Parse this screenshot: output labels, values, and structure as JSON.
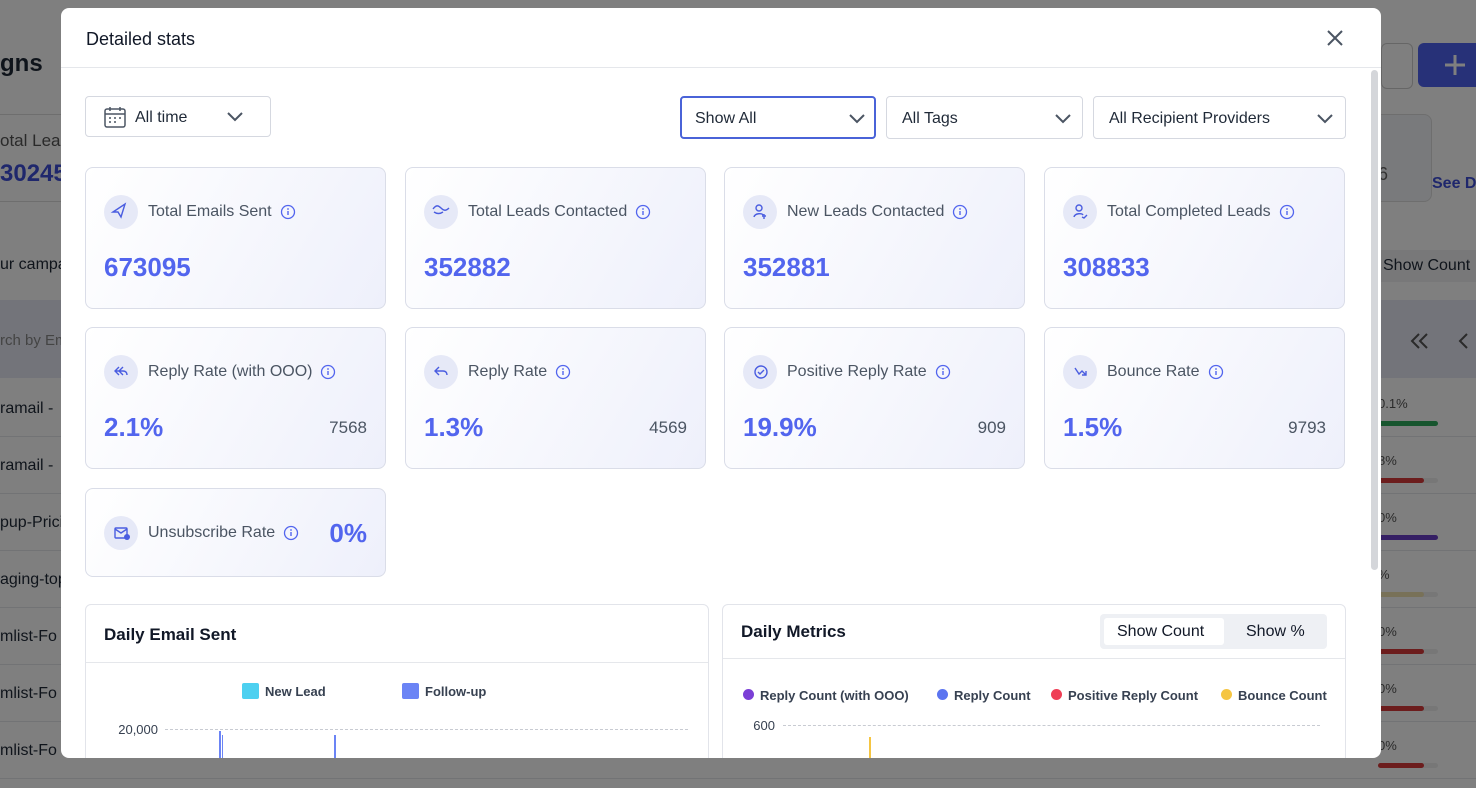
{
  "background": {
    "title": "gns",
    "total_leads_label": "otal Lead",
    "total_leads_value": "30245",
    "side_number": "6",
    "see_link": "See D",
    "campaigns_label": "ur campa",
    "show_count": "Show Count",
    "search_placeholder": "rch by Em",
    "rows": [
      {
        "name": "ramail -",
        "rate": "0.1%"
      },
      {
        "name": "ramail -",
        "rate": "8%"
      },
      {
        "name": "pup-Prici",
        "rate": "0%"
      },
      {
        "name": "aging-top",
        "rate": "%"
      },
      {
        "name": "mlist-Fo",
        "rate": "0%"
      },
      {
        "name": "mlist-Fo",
        "rate": "0%"
      },
      {
        "name": "mlist-Fo",
        "rate": "0%"
      }
    ]
  },
  "modal": {
    "title": "Detailed stats",
    "filters": {
      "date": "All time",
      "view": "Show All",
      "tags": "All Tags",
      "providers": "All Recipient Providers"
    },
    "cards": [
      {
        "label": "Total Emails Sent",
        "value": "673095"
      },
      {
        "label": "Total Leads Contacted",
        "value": "352882"
      },
      {
        "label": "New Leads Contacted",
        "value": "352881"
      },
      {
        "label": "Total Completed Leads",
        "value": "308833"
      },
      {
        "label": "Reply Rate (with OOO)",
        "value": "2.1%",
        "count": "7568"
      },
      {
        "label": "Reply Rate",
        "value": "1.3%",
        "count": "4569"
      },
      {
        "label": "Positive Reply Rate",
        "value": "19.9%",
        "count": "909"
      },
      {
        "label": "Bounce Rate",
        "value": "1.5%",
        "count": "9793"
      },
      {
        "label": "Unsubscribe Rate",
        "value": "0%"
      }
    ],
    "daily_email_sent": {
      "title": "Daily Email Sent",
      "legend": [
        "New Lead",
        "Follow-up"
      ],
      "top_tick": "20,000"
    },
    "daily_metrics": {
      "title": "Daily Metrics",
      "toggle": [
        "Show Count",
        "Show %"
      ],
      "legend": [
        "Reply Count (with OOO)",
        "Reply Count",
        "Positive Reply Count",
        "Bounce Count"
      ],
      "top_tick": "600"
    }
  }
}
